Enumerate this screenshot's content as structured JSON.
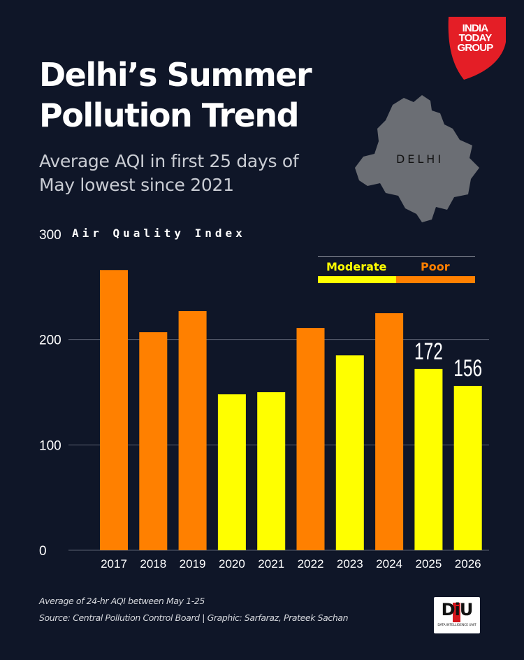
{
  "header": {
    "title_line1": "Delhi’s Summer",
    "title_line2": "Pollution Trend",
    "subtitle_line1": "Average AQI in first 25 days of",
    "subtitle_line2": "May lowest since 2021"
  },
  "branding": {
    "logo_line1": "INDIA",
    "logo_line2": "TODAY",
    "logo_line3": "GROUP",
    "logo_color": "#e41e26",
    "badge_text": "DiU",
    "badge_subtext": "DATA INTELLIGENCE UNIT"
  },
  "map": {
    "label": "DELHI",
    "fill": "#6b6e74"
  },
  "legend": {
    "moderate_label": "Moderate",
    "poor_label": "Poor",
    "moderate_color": "#ffff00",
    "poor_color": "#ff8000"
  },
  "footer": {
    "note": "Average of 24-hr AQI between May 1-25",
    "source": "Source: Central Pollution Control Board | Graphic: Sarfaraz, Prateek Sachan"
  },
  "chart_data": {
    "type": "bar",
    "title": "Delhi’s Summer Pollution Trend",
    "subtitle": "Average AQI in first 25 days of May lowest since 2021",
    "ylabel": "Air Quality Index",
    "ylim": [
      0,
      300
    ],
    "yticks": [
      0,
      100,
      200,
      300
    ],
    "grid": true,
    "legend_position": "top-right",
    "categories": [
      "2017",
      "2018",
      "2019",
      "2020",
      "2021",
      "2022",
      "2023",
      "2024",
      "2025",
      "2026"
    ],
    "values": [
      266,
      207,
      227,
      148,
      150,
      211,
      185,
      225,
      172,
      156
    ],
    "category_labels": [
      "Poor",
      "Poor",
      "Poor",
      "Moderate",
      "Moderate",
      "Poor",
      "Moderate",
      "Poor",
      "Moderate",
      "Moderate"
    ],
    "data_labels": {
      "2025": "172",
      "2026": "156"
    }
  }
}
